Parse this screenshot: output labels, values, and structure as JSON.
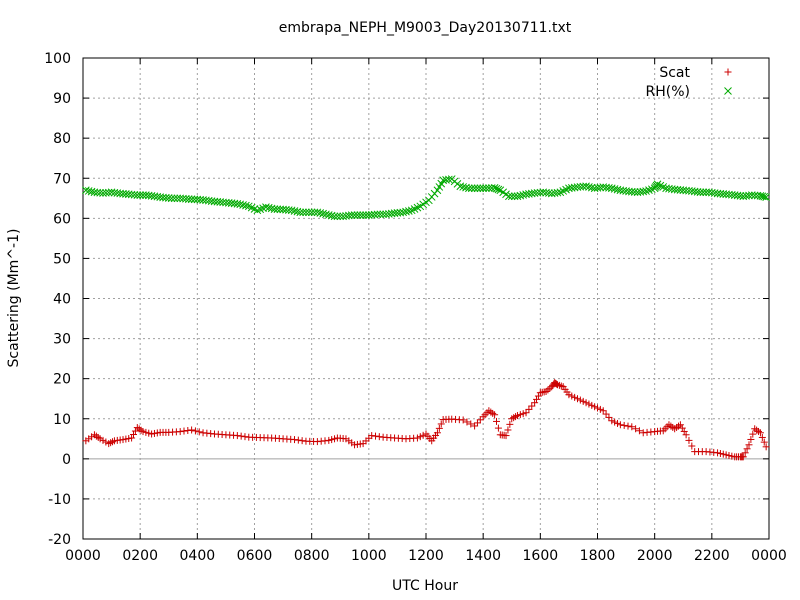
{
  "chart_data": {
    "type": "scatter",
    "title": "embrapa_NEPH_M9003_Day20130711.txt",
    "xlabel": "UTC Hour",
    "ylabel": "Scattering (Mm^-1)",
    "xlim": [
      0,
      24
    ],
    "ylim": [
      -20,
      100
    ],
    "x_ticks": [
      {
        "value": 0,
        "label": "0000"
      },
      {
        "value": 2,
        "label": "0200"
      },
      {
        "value": 4,
        "label": "0400"
      },
      {
        "value": 6,
        "label": "0600"
      },
      {
        "value": 8,
        "label": "0800"
      },
      {
        "value": 10,
        "label": "1000"
      },
      {
        "value": 12,
        "label": "1200"
      },
      {
        "value": 14,
        "label": "1400"
      },
      {
        "value": 16,
        "label": "1600"
      },
      {
        "value": 18,
        "label": "1800"
      },
      {
        "value": 20,
        "label": "2000"
      },
      {
        "value": 22,
        "label": "2200"
      },
      {
        "value": 24,
        "label": "0000"
      }
    ],
    "y_ticks": [
      -20,
      -10,
      0,
      10,
      20,
      30,
      40,
      50,
      60,
      70,
      80,
      90,
      100
    ],
    "grid": true,
    "legend_position": "top-right",
    "series": [
      {
        "name": "Scat",
        "marker": "plus",
        "color": "#cc0000",
        "x": [
          0.1,
          0.4,
          0.6,
          0.9,
          1.1,
          1.4,
          1.7,
          1.9,
          2.1,
          2.4,
          2.7,
          3.0,
          3.4,
          3.8,
          4.2,
          4.6,
          5.0,
          5.4,
          5.8,
          6.2,
          6.6,
          7.0,
          7.4,
          7.8,
          8.2,
          8.6,
          8.9,
          9.2,
          9.5,
          9.8,
          10.1,
          10.5,
          10.9,
          11.3,
          11.7,
          12.0,
          12.2,
          12.4,
          12.6,
          12.9,
          13.3,
          13.7,
          14.0,
          14.2,
          14.4,
          14.6,
          14.8,
          15.0,
          15.2,
          15.5,
          15.8,
          16.0,
          16.2,
          16.4,
          16.5,
          16.6,
          16.8,
          17.0,
          17.3,
          17.6,
          17.9,
          18.2,
          18.5,
          18.8,
          19.2,
          19.6,
          20.0,
          20.3,
          20.5,
          20.7,
          20.9,
          21.1,
          21.4,
          21.8,
          22.2,
          22.5,
          22.8,
          23.0,
          23.1,
          23.3,
          23.5,
          23.7,
          23.9
        ],
        "y": [
          4.5,
          6.0,
          5.0,
          3.8,
          4.5,
          4.8,
          5.2,
          7.8,
          6.8,
          6.2,
          6.6,
          6.6,
          6.8,
          7.2,
          6.5,
          6.2,
          6.0,
          5.8,
          5.4,
          5.3,
          5.2,
          5.0,
          4.8,
          4.4,
          4.3,
          4.6,
          5.2,
          5.0,
          3.5,
          3.8,
          5.8,
          5.4,
          5.2,
          5.0,
          5.2,
          6.2,
          4.5,
          6.5,
          9.8,
          9.9,
          9.7,
          8.2,
          10.5,
          12.0,
          11.0,
          6.0,
          5.8,
          10.0,
          10.8,
          11.5,
          14.0,
          16.5,
          16.8,
          18.0,
          19.0,
          18.5,
          18.0,
          16.0,
          15.0,
          14.0,
          13.0,
          12.0,
          9.5,
          8.5,
          8.0,
          6.5,
          6.8,
          7.0,
          8.5,
          7.5,
          8.5,
          6.0,
          1.8,
          1.8,
          1.5,
          1.0,
          0.5,
          0.5,
          0.5,
          3.5,
          7.5,
          6.5,
          3.0
        ]
      },
      {
        "name": "RH(%)",
        "marker": "cross",
        "color": "#00aa00",
        "x": [
          0.1,
          0.4,
          0.7,
          1.0,
          1.3,
          1.6,
          1.9,
          2.2,
          2.5,
          2.8,
          3.1,
          3.4,
          3.7,
          4.0,
          4.3,
          4.6,
          4.9,
          5.2,
          5.5,
          5.8,
          6.1,
          6.4,
          6.7,
          7.0,
          7.3,
          7.6,
          7.9,
          8.2,
          8.5,
          8.8,
          9.1,
          9.4,
          9.7,
          10.0,
          10.3,
          10.6,
          10.9,
          11.2,
          11.5,
          11.8,
          12.1,
          12.4,
          12.6,
          12.9,
          13.2,
          13.5,
          13.8,
          14.1,
          14.4,
          14.6,
          14.9,
          15.2,
          15.5,
          15.8,
          16.1,
          16.4,
          16.7,
          17.0,
          17.3,
          17.6,
          17.9,
          18.2,
          18.5,
          18.8,
          19.1,
          19.4,
          19.7,
          20.0,
          20.1,
          20.4,
          20.7,
          21.0,
          21.3,
          21.6,
          21.9,
          22.2,
          22.5,
          22.8,
          23.1,
          23.4,
          23.7,
          23.9
        ],
        "y": [
          67.0,
          66.5,
          66.3,
          66.5,
          66.2,
          66.0,
          65.8,
          65.8,
          65.5,
          65.2,
          65.0,
          65.0,
          64.8,
          64.7,
          64.5,
          64.2,
          64.0,
          63.8,
          63.5,
          63.0,
          62.0,
          62.8,
          62.3,
          62.2,
          62.0,
          61.5,
          61.5,
          61.5,
          61.0,
          60.5,
          60.5,
          60.8,
          60.8,
          60.8,
          61.0,
          61.0,
          61.3,
          61.5,
          62.0,
          63.0,
          64.5,
          67.0,
          69.5,
          69.8,
          68.0,
          67.5,
          67.5,
          67.5,
          67.6,
          67.0,
          65.5,
          65.5,
          66.0,
          66.3,
          66.5,
          66.2,
          66.5,
          67.5,
          67.8,
          68.0,
          67.5,
          67.8,
          67.5,
          67.0,
          66.7,
          66.5,
          66.8,
          67.5,
          68.5,
          67.5,
          67.2,
          67.0,
          66.8,
          66.5,
          66.5,
          66.2,
          66.0,
          65.8,
          65.5,
          65.8,
          65.6,
          65.3
        ]
      }
    ]
  }
}
